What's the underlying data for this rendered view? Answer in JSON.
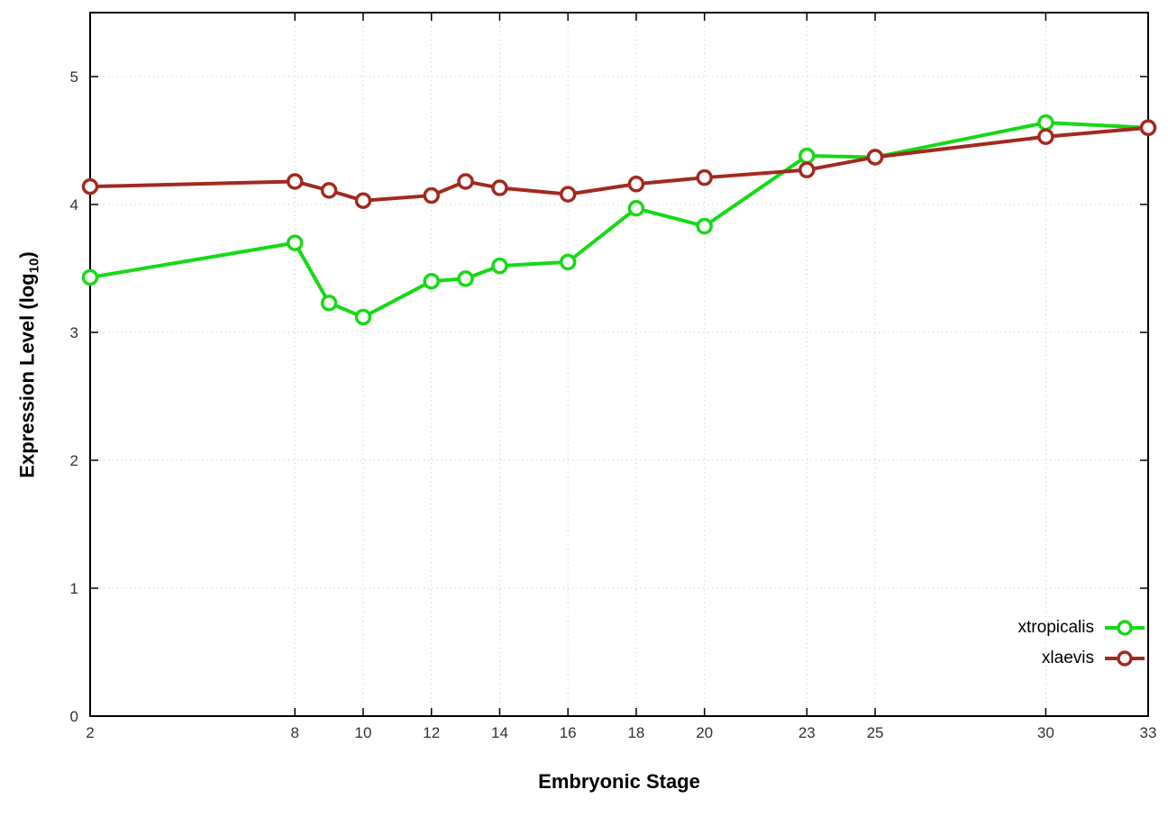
{
  "chart_data": {
    "type": "line",
    "title": "",
    "xlabel": "Embryonic Stage",
    "ylabel": "Expression Level (log10)",
    "ylabel_parts": {
      "pre": "Expression Level (log",
      "sub": "10",
      "post": ")"
    },
    "xlim": [
      2,
      33
    ],
    "ylim": [
      0,
      5.5
    ],
    "x_ticks": [
      2,
      8,
      10,
      12,
      14,
      16,
      18,
      20,
      23,
      25,
      30,
      33
    ],
    "y_ticks": [
      0,
      1,
      2,
      3,
      4,
      5
    ],
    "grid": true,
    "legend_position": "inside-bottom-right",
    "marker": "open-circle",
    "x": [
      2,
      8,
      9,
      10,
      12,
      13,
      14,
      16,
      18,
      20,
      23,
      25,
      30,
      33
    ],
    "series": [
      {
        "name": "xtropicalis",
        "color": "#16d916",
        "values": [
          3.43,
          3.7,
          3.23,
          3.12,
          3.4,
          3.42,
          3.52,
          3.55,
          3.97,
          3.83,
          4.38,
          4.37,
          4.64,
          4.6
        ]
      },
      {
        "name": "xlaevis",
        "color": "#a3291f",
        "values": [
          4.14,
          4.18,
          4.11,
          4.03,
          4.07,
          4.18,
          4.13,
          4.08,
          4.16,
          4.21,
          4.27,
          4.37,
          4.53,
          4.6
        ]
      }
    ],
    "styles": {
      "grid_color": "#c9c9c9",
      "border_color": "#000000",
      "tick_label_color": "#333333"
    }
  }
}
